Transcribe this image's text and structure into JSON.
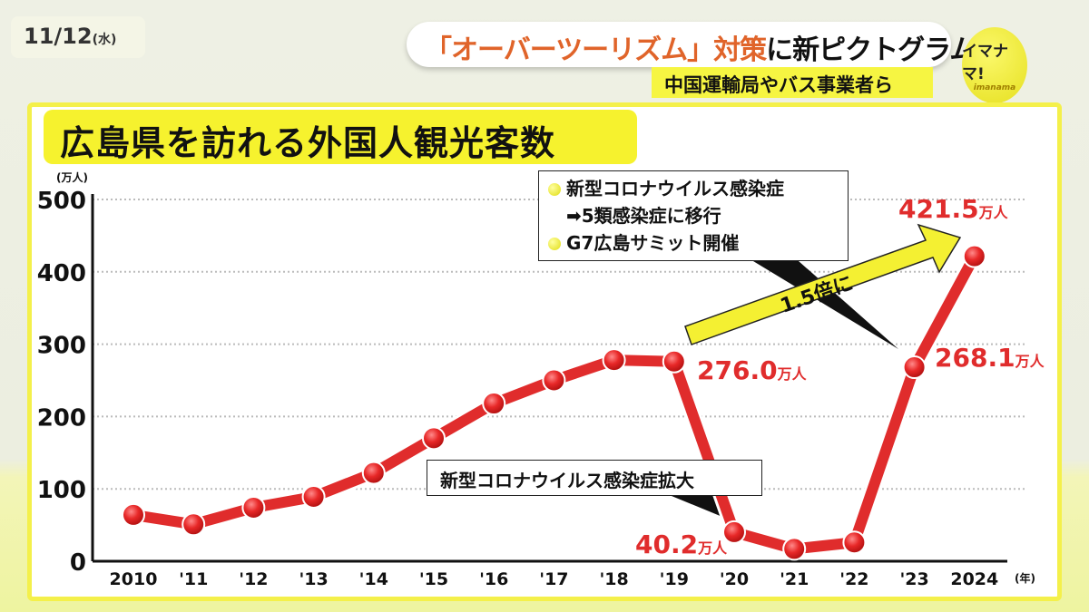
{
  "header": {
    "date": "11/12",
    "weekday": "(水)",
    "headline_highlight": "「オーバーツーリズム」対策",
    "headline_rest": "に新ピクトグラム",
    "subheadline": "中国運輸局やバス事業者ら",
    "logo_text": "イマナマ!",
    "logo_sub": "imanama"
  },
  "colors": {
    "line": "#e02c2c",
    "accent": "#f6f22e"
  },
  "annotations": {
    "box1_line1": "新型コロナウイルス感染症",
    "box1_line2": "➡5類感染症に移行",
    "box1_line3": "G7広島サミット開催",
    "box2": "新型コロナウイルス感染症拡大",
    "arrow": "1.5倍に",
    "label_2024": "421.5",
    "label_2019": "276.0",
    "label_2023": "268.1",
    "label_2020": "40.2",
    "unit": "万人"
  },
  "chart_data": {
    "type": "line",
    "title": "広島県を訪れる外国人観光客数",
    "ylabel": "(万人)",
    "xlabel": "(年)",
    "ylim": [
      0,
      500
    ],
    "yticks": [
      "0",
      "100",
      "200",
      "300",
      "400",
      "500"
    ],
    "grid": true,
    "categories": [
      "2010",
      "'11",
      "'12",
      "'13",
      "'14",
      "'15",
      "'16",
      "'17",
      "'18",
      "'19",
      "'20",
      "'21",
      "'22",
      "'23",
      "2024"
    ],
    "series": [
      {
        "name": "外国人観光客数",
        "values": [
          64,
          51,
          74,
          89,
          122,
          170,
          218,
          250,
          278,
          276.0,
          40.2,
          17,
          26,
          268.1,
          421.5
        ]
      }
    ]
  }
}
